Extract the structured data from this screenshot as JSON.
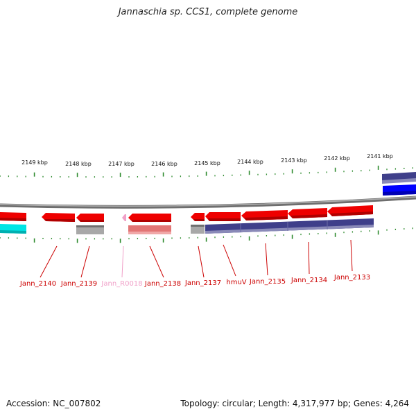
{
  "title": "Jannaschia sp. CCS1, complete genome",
  "footer": {
    "accession": "Accession: NC_007802",
    "summary": "Topology: circular; Length: 4,317,977 bp; Genes: 4,264"
  },
  "scale_labels": [
    "2149 kbp",
    "2148 kbp",
    "2147 kbp",
    "2146 kbp",
    "2145 kbp",
    "2144 kbp",
    "2143 kbp",
    "2142 kbp",
    "2141 kbp"
  ],
  "gene_labels": [
    {
      "text": "Jann_2140",
      "color": "#cc0000"
    },
    {
      "text": "Jann_2139",
      "color": "#cc0000"
    },
    {
      "text": "Jann_R0018",
      "color": "#f0a0c8"
    },
    {
      "text": "Jann_2138",
      "color": "#cc0000"
    },
    {
      "text": "Jann_2137",
      "color": "#cc0000"
    },
    {
      "text": "hmuV",
      "color": "#cc0000"
    },
    {
      "text": "Jann_2135",
      "color": "#cc0000"
    },
    {
      "text": "Jann_2134",
      "color": "#cc0000"
    },
    {
      "text": "Jann_2133",
      "color": "#cc0000"
    }
  ],
  "colors": {
    "cds": "#ee0000",
    "cds_dark": "#b00000",
    "cog_navy": "#3f3f8a",
    "cog_cyan": "#00e5e5",
    "cog_gray": "#a8a8a8",
    "cog_salmon": "#e27575",
    "rna": "#f0a0c8",
    "blue": "#0000ff",
    "backbone": "#8a8a8a",
    "tick": "#2e8b2e",
    "pointer": "#cc0000"
  }
}
